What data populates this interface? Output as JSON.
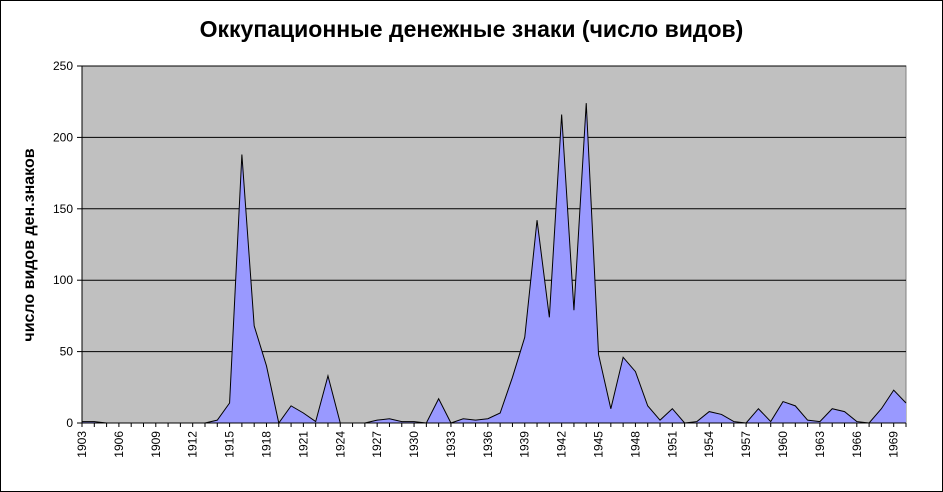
{
  "chart_data": {
    "type": "area",
    "title": "Оккупационные денежные знаки (число видов)",
    "xlabel": "",
    "ylabel": "число видов ден.знаков",
    "ylim": [
      0,
      250
    ],
    "yticks": [
      0,
      50,
      100,
      150,
      200,
      250
    ],
    "grid": true,
    "legend": "none",
    "x": [
      1903,
      1904,
      1905,
      1906,
      1907,
      1908,
      1909,
      1910,
      1911,
      1912,
      1913,
      1914,
      1915,
      1916,
      1917,
      1918,
      1919,
      1920,
      1921,
      1922,
      1923,
      1924,
      1925,
      1926,
      1927,
      1928,
      1929,
      1930,
      1931,
      1932,
      1933,
      1934,
      1935,
      1936,
      1937,
      1938,
      1939,
      1940,
      1941,
      1942,
      1943,
      1944,
      1945,
      1946,
      1947,
      1948,
      1949,
      1950,
      1951,
      1952,
      1953,
      1954,
      1955,
      1956,
      1957,
      1958,
      1959,
      1960,
      1961,
      1962,
      1963,
      1964,
      1965,
      1966,
      1967,
      1968,
      1969,
      1970
    ],
    "xtick_labels": [
      "1903",
      "1906",
      "1909",
      "1912",
      "1915",
      "1918",
      "1921",
      "1924",
      "1927",
      "1930",
      "1933",
      "1936",
      "1939",
      "1942",
      "1945",
      "1948",
      "1951",
      "1954",
      "1957",
      "1960",
      "1963",
      "1966",
      "1969"
    ],
    "series": [
      {
        "values": [
          1,
          1,
          0,
          0,
          0,
          0,
          0,
          0,
          0,
          0,
          0,
          2,
          14,
          188,
          68,
          40,
          0,
          12,
          7,
          1,
          33,
          0,
          0,
          0,
          2,
          3,
          1,
          1,
          0,
          17,
          0,
          3,
          2,
          3,
          7,
          32,
          60,
          142,
          74,
          216,
          79,
          224,
          48,
          10,
          46,
          36,
          12,
          2,
          10,
          0,
          1,
          8,
          6,
          1,
          0,
          10,
          1,
          15,
          12,
          2,
          1,
          10,
          8,
          1,
          0,
          10,
          23,
          14
        ]
      }
    ],
    "colors": {
      "fill": "#9999FF",
      "plot_bg": "#C0C0C0",
      "line": "#000000",
      "grid": "#000000"
    }
  }
}
